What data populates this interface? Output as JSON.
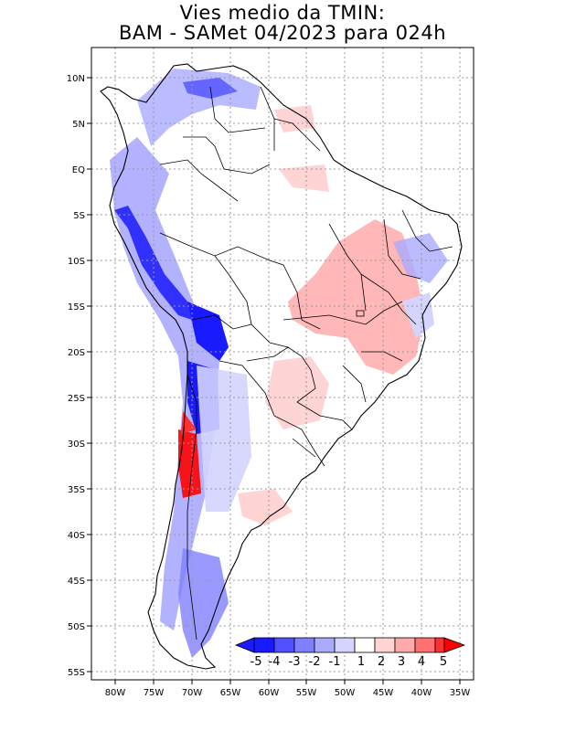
{
  "title": {
    "line1": "Vies medio da TMIN:",
    "line2": "BAM - SAMet 04/2023  para 024h"
  },
  "axes": {
    "lat_labels": [
      "10N",
      "5N",
      "EQ",
      "5S",
      "10S",
      "15S",
      "20S",
      "25S",
      "30S",
      "35S",
      "40S",
      "45S",
      "50S",
      "55S"
    ],
    "lon_labels": [
      "80W",
      "75W",
      "70W",
      "65W",
      "60W",
      "55W",
      "50W",
      "45W",
      "40W",
      "35W"
    ],
    "grid": "dotted",
    "lon_range": [
      -83,
      -34
    ],
    "lat_range": [
      -55,
      12
    ]
  },
  "colorbar": {
    "labels": [
      "-5",
      "-4",
      "-3",
      "-2",
      "-1",
      "1",
      "2",
      "3",
      "4",
      "5"
    ],
    "colors": [
      "#1a1aff",
      "#5050ff",
      "#8080ff",
      "#aaaaff",
      "#d4d4ff",
      "#ffffff",
      "#ffd4d4",
      "#ffaaaa",
      "#ff7070",
      "#ff3030",
      "#ff0000"
    ],
    "placement": "bottom-right inside map"
  }
}
